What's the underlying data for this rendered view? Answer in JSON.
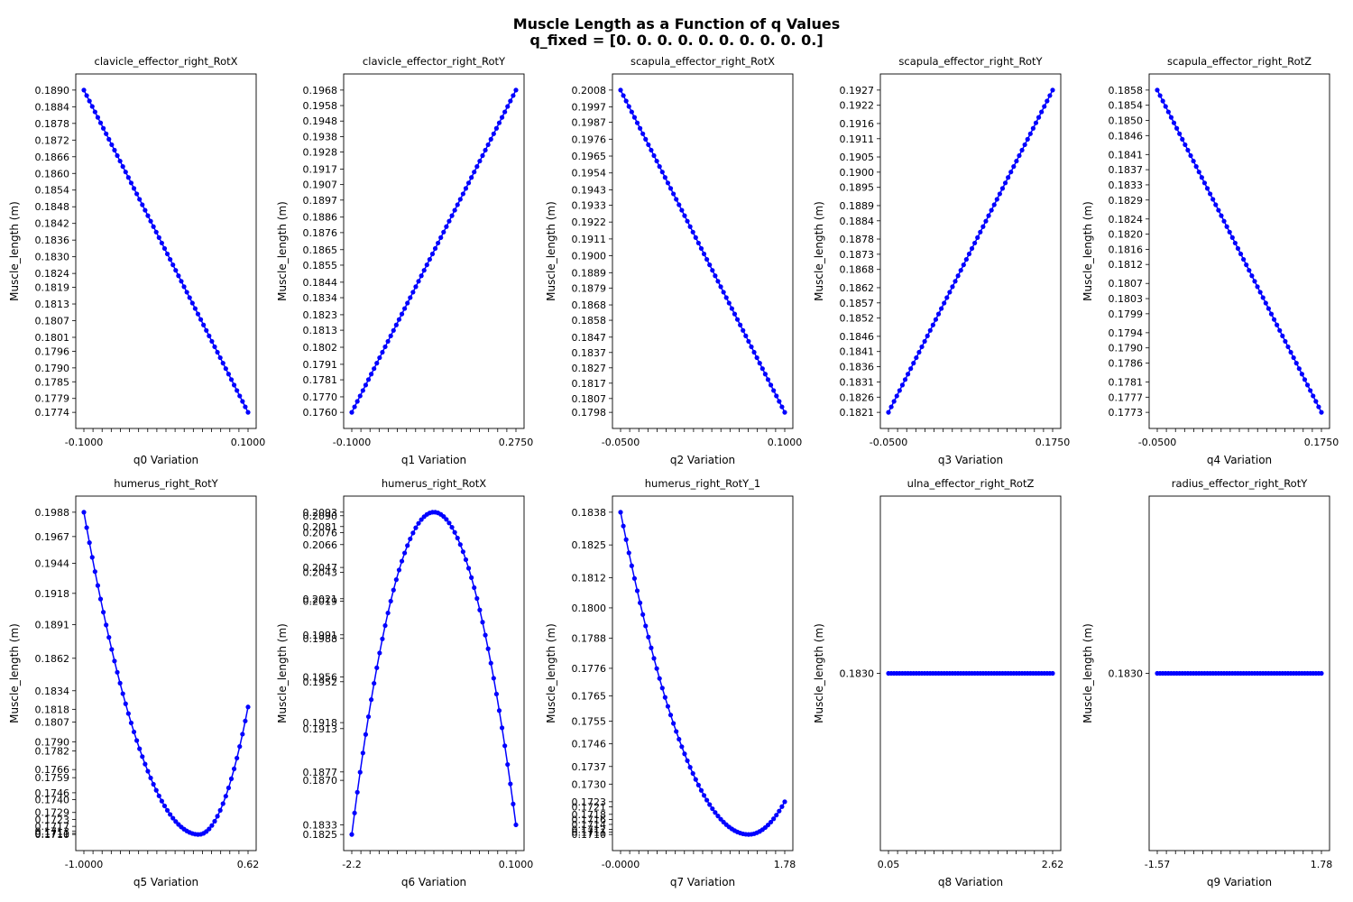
{
  "figure": {
    "title_line1": "Muscle Length as a Function of q Values",
    "title_line2": "q_fixed = [0. 0. 0. 0. 0. 0. 0. 0. 0. 0.]",
    "marker_color": "#0000ff"
  },
  "chart_data": [
    {
      "type": "line",
      "title": "clavicle_effector_right_RotX",
      "xlabel": "q0 Variation",
      "ylabel": "Muscle_length (m)",
      "x_range": [
        -0.1,
        0.1
      ],
      "shape": "linear",
      "y_start": 0.189,
      "y_end": 0.1774,
      "yticks": [
        "0.1890",
        "0.1884",
        "0.1878",
        "0.1872",
        "0.1866",
        "0.1860",
        "0.1854",
        "0.1848",
        "0.1842",
        "0.1836",
        "0.1830",
        "0.1824",
        "0.1819",
        "0.1813",
        "0.1807",
        "0.1801",
        "0.1796",
        "0.1790",
        "0.1785",
        "0.1779",
        "0.1774"
      ],
      "xtick_text": "-0.1000",
      "xtick_text_end": "0.1000"
    },
    {
      "type": "line",
      "title": "clavicle_effector_right_RotY",
      "xlabel": "q1 Variation",
      "ylabel": "Muscle_length (m)",
      "x_range": [
        -0.1,
        0.275
      ],
      "shape": "linear",
      "y_start": 0.176,
      "y_end": 0.1968,
      "yticks": [
        "0.1968",
        "0.1958",
        "0.1948",
        "0.1938",
        "0.1928",
        "0.1917",
        "0.1907",
        "0.1897",
        "0.1886",
        "0.1876",
        "0.1865",
        "0.1855",
        "0.1844",
        "0.1834",
        "0.1823",
        "0.1813",
        "0.1802",
        "0.1791",
        "0.1781",
        "0.1770",
        "0.1760"
      ],
      "xtick_text": "-0.1000",
      "xtick_text_end": "0.2750"
    },
    {
      "type": "line",
      "title": "scapula_effector_right_RotX",
      "xlabel": "q2 Variation",
      "ylabel": "Muscle_length (m)",
      "x_range": [
        -0.05,
        0.1
      ],
      "shape": "linear",
      "y_start": 0.2008,
      "y_end": 0.1798,
      "yticks": [
        "0.2008",
        "0.1997",
        "0.1987",
        "0.1976",
        "0.1965",
        "0.1954",
        "0.1943",
        "0.1933",
        "0.1922",
        "0.1911",
        "0.1900",
        "0.1889",
        "0.1879",
        "0.1868",
        "0.1858",
        "0.1847",
        "0.1837",
        "0.1827",
        "0.1817",
        "0.1807",
        "0.1798"
      ],
      "xtick_text": "-0.0500",
      "xtick_text_end": "0.1000"
    },
    {
      "type": "line",
      "title": "scapula_effector_right_RotY",
      "xlabel": "q3 Variation",
      "ylabel": "Muscle_length (m)",
      "x_range": [
        -0.05,
        0.175
      ],
      "shape": "linear",
      "y_start": 0.1821,
      "y_end": 0.1927,
      "yticks": [
        "0.1927",
        "0.1922",
        "0.1916",
        "0.1911",
        "0.1905",
        "0.1900",
        "0.1895",
        "0.1889",
        "0.1884",
        "0.1878",
        "0.1873",
        "0.1868",
        "0.1862",
        "0.1857",
        "0.1852",
        "0.1846",
        "0.1841",
        "0.1836",
        "0.1831",
        "0.1826",
        "0.1821"
      ],
      "xtick_text": "-0.0500",
      "xtick_text_end": "0.1750"
    },
    {
      "type": "line",
      "title": "scapula_effector_right_RotZ",
      "xlabel": "q4 Variation",
      "ylabel": "Muscle_length (m)",
      "x_range": [
        -0.05,
        0.175
      ],
      "shape": "linear",
      "y_start": 0.1858,
      "y_end": 0.1773,
      "yticks": [
        "0.1858",
        "0.1854",
        "0.1850",
        "0.1846",
        "0.1841",
        "0.1837",
        "0.1833",
        "0.1829",
        "0.1824",
        "0.1820",
        "0.1816",
        "0.1812",
        "0.1807",
        "0.1803",
        "0.1799",
        "0.1794",
        "0.1790",
        "0.1786",
        "0.1781",
        "0.1777",
        "0.1773"
      ],
      "xtick_text": "-0.0500",
      "xtick_text_end": "0.1750"
    },
    {
      "type": "line",
      "title": "humerus_right_RotY",
      "xlabel": "q5 Variation",
      "ylabel": "Muscle_length (m)",
      "x_range": [
        -1.0,
        0.62
      ],
      "shape": "trough",
      "y_start": 0.1988,
      "y_min": 0.171,
      "y_end": 0.182,
      "min_x_frac": 0.7,
      "yticks": [
        "0.1988",
        "0.1967",
        "0.1944",
        "0.1918",
        "0.1891",
        "0.1862",
        "0.1834",
        "0.1818",
        "0.1807",
        "0.1790",
        "0.1782",
        "0.1766",
        "0.1759",
        "0.1746",
        "0.1740",
        "0.1729",
        "0.1723",
        "0.1717",
        "0.1713",
        "0.1711",
        "0.1710"
      ],
      "xtick_text": "-1.0000",
      "xtick_text_end": "0.62"
    },
    {
      "type": "line",
      "title": "humerus_right_RotX",
      "xlabel": "q6 Variation",
      "ylabel": "Muscle_length (m)",
      "x_range": [
        -2.2,
        0.1
      ],
      "shape": "peak",
      "y_start": 0.1825,
      "y_max": 0.2093,
      "y_end": 0.1833,
      "peak_x_frac": 0.5,
      "yticks": [
        "0.2093",
        "0.2090",
        "0.2081",
        "0.2076",
        "0.2066",
        "0.2047",
        "0.2043",
        "0.2021",
        "0.2019",
        "0.1991",
        "0.1988",
        "0.1956",
        "0.1952",
        "0.1918",
        "0.1913",
        "0.1877",
        "0.1870",
        "0.1833",
        "0.1825"
      ],
      "xtick_text": "-2.2",
      "xtick_text_end": "0.1000"
    },
    {
      "type": "line",
      "title": "humerus_right_RotY_1",
      "xlabel": "q7 Variation",
      "ylabel": "Muscle_length (m)",
      "x_range": [
        0.0,
        1.78
      ],
      "shape": "trough",
      "y_start": 0.1838,
      "y_min": 0.171,
      "y_end": 0.1723,
      "min_x_frac": 0.78,
      "yticks": [
        "0.1838",
        "0.1825",
        "0.1812",
        "0.1800",
        "0.1788",
        "0.1776",
        "0.1765",
        "0.1755",
        "0.1746",
        "0.1737",
        "0.1730",
        "0.1723",
        "0.1721",
        "0.1718",
        "0.1716",
        "0.1714",
        "0.1712",
        "0.1711",
        "0.1710"
      ],
      "xtick_text": "-0.0000",
      "xtick_text_end": "1.78"
    },
    {
      "type": "line",
      "title": "ulna_effector_right_RotZ",
      "xlabel": "q8 Variation",
      "ylabel": "Muscle_length (m)",
      "x_range": [
        0.05,
        2.62
      ],
      "shape": "flat",
      "y_const": 0.183,
      "yticks": [
        "0.1830"
      ],
      "xtick_text": "0.05",
      "xtick_text_end": "2.62"
    },
    {
      "type": "line",
      "title": "radius_effector_right_RotY",
      "xlabel": "q9 Variation",
      "ylabel": "Muscle_length (m)",
      "x_range": [
        -1.57,
        1.78
      ],
      "shape": "flat",
      "y_const": 0.183,
      "yticks": [
        "0.1830"
      ],
      "xtick_text": "-1.57",
      "xtick_text_end": "1.78"
    }
  ]
}
